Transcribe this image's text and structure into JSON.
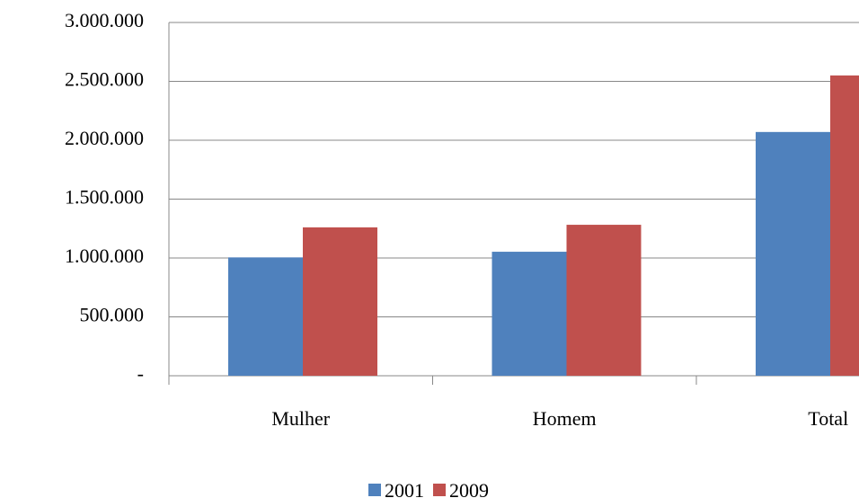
{
  "chart_data": {
    "type": "bar",
    "categories": [
      "Mulher",
      "Homem",
      "Total"
    ],
    "series": [
      {
        "name": "2001",
        "color": "#4f81bd",
        "values": [
          1005000,
          1053000,
          2070000
        ]
      },
      {
        "name": "2009",
        "color": "#c0504d",
        "values": [
          1260000,
          1282000,
          2550000
        ]
      }
    ],
    "ylim": [
      0,
      3000000
    ],
    "yticks": [
      {
        "value": 0,
        "label": "-"
      },
      {
        "value": 500000,
        "label": "500.000"
      },
      {
        "value": 1000000,
        "label": "1.000.000"
      },
      {
        "value": 1500000,
        "label": "1.500.000"
      },
      {
        "value": 2000000,
        "label": "2.000.000"
      },
      {
        "value": 2500000,
        "label": "2.500.000"
      },
      {
        "value": 3000000,
        "label": "3.000.000"
      }
    ],
    "grid": true,
    "legend": "bottom"
  }
}
